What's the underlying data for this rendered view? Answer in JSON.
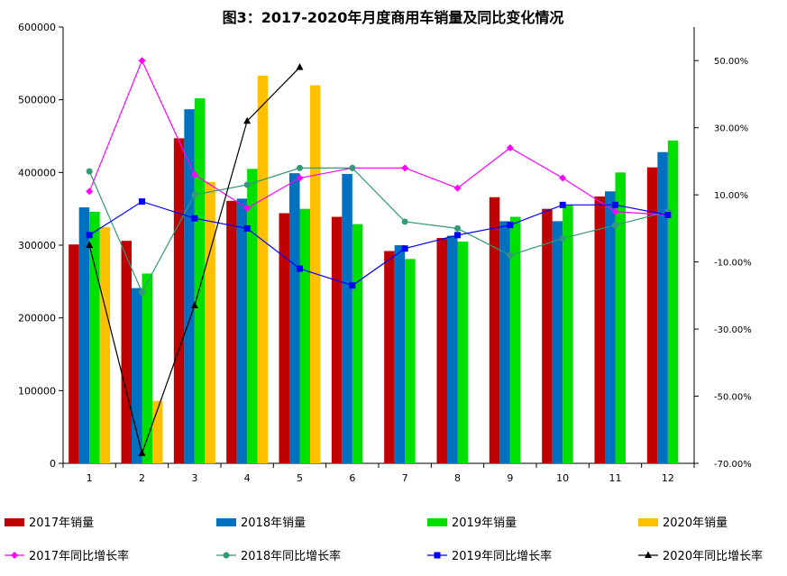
{
  "chart_data": {
    "type": "bar",
    "title": "图3：2017-2020年月度商用车销量及同比变化情况",
    "categories": [
      "1",
      "2",
      "3",
      "4",
      "5",
      "6",
      "7",
      "8",
      "9",
      "10",
      "11",
      "12"
    ],
    "y_left": {
      "ylim": [
        0,
        600000
      ],
      "ticks": [
        "0",
        "100000",
        "200000",
        "300000",
        "400000",
        "500000",
        "600000"
      ]
    },
    "y_right": {
      "ylim": [
        -70,
        60
      ],
      "ticks": [
        "-70.00%",
        "-50.00%",
        "-30.00%",
        "-10.00%",
        "10.00%",
        "30.00%",
        "50.00%"
      ]
    },
    "grid": false,
    "legend_position": "bottom",
    "bar_series": [
      {
        "name": "2017年销量",
        "color": "#c00000",
        "values": [
          301000,
          306000,
          447000,
          361000,
          344000,
          339000,
          292000,
          310000,
          366000,
          350000,
          367000,
          407000
        ]
      },
      {
        "name": "2018年销量",
        "color": "#0070c0",
        "values": [
          352000,
          241000,
          487000,
          364000,
          399000,
          398000,
          300000,
          313000,
          333000,
          333000,
          374000,
          428000
        ]
      },
      {
        "name": "2019年销量",
        "color": "#00e000",
        "values": [
          346000,
          261000,
          502000,
          405000,
          350000,
          329000,
          281000,
          305000,
          339000,
          355000,
          400000,
          444000
        ]
      },
      {
        "name": "2020年销量",
        "color": "#ffc000",
        "values": [
          325000,
          86000,
          387000,
          533000,
          520000,
          null,
          null,
          null,
          null,
          null,
          null,
          null
        ]
      }
    ],
    "line_series": [
      {
        "name": "2017年同比增长率",
        "color": "#ff00ff",
        "marker": "diamond",
        "values": [
          11,
          50,
          16,
          6,
          15,
          18,
          18,
          12,
          24,
          15,
          5,
          4
        ]
      },
      {
        "name": "2018年同比增长率",
        "color": "#339977",
        "marker": "circle",
        "values": [
          17,
          -19,
          10,
          13,
          18,
          18,
          2,
          0,
          -8,
          -3,
          1,
          5
        ]
      },
      {
        "name": "2019年同比增长率",
        "color": "#0000ff",
        "marker": "square",
        "values": [
          -2,
          8,
          3,
          0,
          -12,
          -17,
          -6,
          -2,
          1,
          7,
          7,
          4
        ]
      },
      {
        "name": "2020年同比增长率",
        "color": "#000000",
        "marker": "triangle",
        "values": [
          -5,
          -67,
          -23,
          32,
          48,
          null,
          null,
          null,
          null,
          null,
          null,
          null
        ]
      }
    ]
  }
}
